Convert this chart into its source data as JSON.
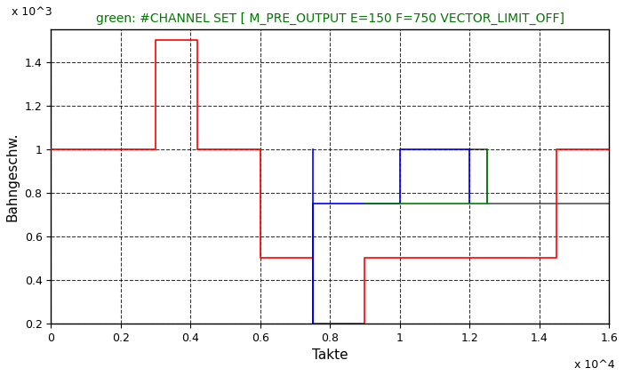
{
  "title": "green: #CHANNEL SET [ M_PRE_OUTPUT E=150 F=750 VECTOR_LIMIT_OFF]",
  "xlabel": "Takte",
  "ylabel": "Bahngeschw.",
  "xlim": [
    0,
    16000
  ],
  "ylim": [
    200,
    1550
  ],
  "yticks": [
    200,
    400,
    600,
    800,
    1000,
    1200,
    1400
  ],
  "ytick_labels": [
    "0.2",
    "0.4",
    "0.6",
    "0.8",
    "1",
    "1.2",
    "1.4"
  ],
  "xticks": [
    0,
    2000,
    4000,
    6000,
    8000,
    10000,
    12000,
    14000,
    16000
  ],
  "xtick_labels": [
    "0",
    "0.2",
    "0.4",
    "0.6",
    "0.8",
    "1",
    "1.2",
    "1.4",
    "1.6"
  ],
  "xscale_label": "x 10^4",
  "yscale_label": "x 10^3",
  "red_line": {
    "x": [
      0,
      3000,
      3000,
      4200,
      4200,
      6000,
      6000,
      7500,
      7500,
      9000,
      9000,
      14500,
      14500,
      16000
    ],
    "y": [
      1000,
      1000,
      1500,
      1500,
      1000,
      1000,
      500,
      500,
      200,
      200,
      500,
      500,
      1000,
      1000
    ]
  },
  "blue_line": {
    "x": [
      7500,
      7500,
      7500,
      9000,
      10000,
      10000,
      12000,
      12000
    ],
    "y": [
      1000,
      200,
      750,
      750,
      750,
      1000,
      1000,
      750
    ]
  },
  "green_line": {
    "x": [
      9000,
      9000,
      12500,
      12500
    ],
    "y": [
      750,
      750,
      750,
      1000
    ]
  },
  "black_line": {
    "x": [
      12000,
      12500,
      12500,
      16000
    ],
    "y": [
      1000,
      1000,
      750,
      750
    ]
  },
  "background_color": "#ffffff",
  "title_color": "#007700",
  "title_fontsize": 10,
  "axis_label_fontsize": 11
}
